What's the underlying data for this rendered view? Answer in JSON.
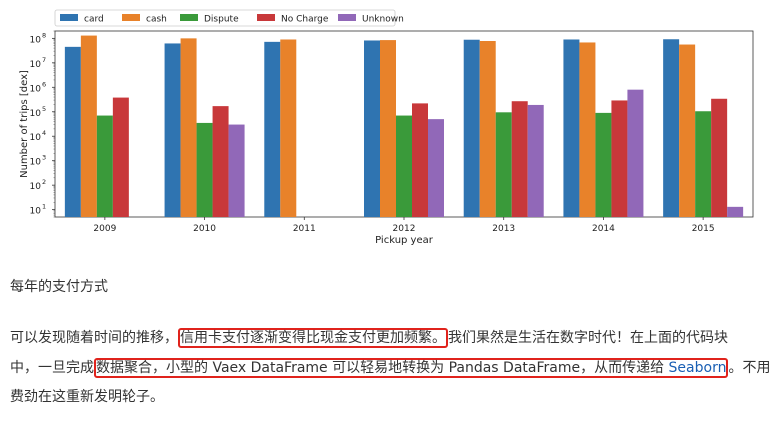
{
  "chart_data": {
    "type": "bar",
    "categories": [
      "2009",
      "2010",
      "2011",
      "2012",
      "2013",
      "2014",
      "2015"
    ],
    "series": [
      {
        "name": "card",
        "color": "#2f74b1",
        "values": [
          45000000,
          62000000,
          72000000,
          82000000,
          88000000,
          90000000,
          92000000
        ]
      },
      {
        "name": "cash",
        "color": "#e8822a",
        "values": [
          130000000,
          100000000,
          90000000,
          85000000,
          78000000,
          68000000,
          56000000
        ]
      },
      {
        "name": "Dispute",
        "color": "#3a9a3a",
        "values": [
          70000,
          35000,
          null,
          70000,
          95000,
          90000,
          105000
        ]
      },
      {
        "name": "No Charge",
        "color": "#c8383a",
        "values": [
          380000,
          170000,
          null,
          220000,
          270000,
          290000,
          340000
        ]
      },
      {
        "name": "Unknown",
        "color": "#9168b8",
        "values": [
          null,
          30000,
          null,
          50000,
          190000,
          800000,
          13
        ]
      }
    ],
    "xlabel": "Pickup year",
    "ylabel": "Number of trips [dex]",
    "yscale": "log",
    "ylim": [
      5,
      200000000
    ],
    "yticks": [
      {
        "value": 10,
        "label": "10"
      },
      {
        "value": 100,
        "label": "10"
      },
      {
        "value": 1000,
        "label": "10"
      },
      {
        "value": 10000,
        "label": "10"
      },
      {
        "value": 100000,
        "label": "10"
      },
      {
        "value": 1000000,
        "label": "10"
      },
      {
        "value": 10000000,
        "label": "10"
      },
      {
        "value": 100000000,
        "label": "10"
      }
    ],
    "ytick_exponents": [
      "1",
      "2",
      "3",
      "4",
      "5",
      "6",
      "7",
      "8"
    ],
    "legend_position": "top-left",
    "grid": false
  },
  "article": {
    "caption": "每年的支付方式",
    "line1_a": "可以发现随着时间的推移，",
    "line1_b": "信用卡支付逐渐变得比现金支付更加频繁。",
    "line1_c": "我们果然是生活在数字时代！在上面的代码块",
    "line2_a": "中，一旦完成",
    "line2_b": "数据聚合，小型的 Vaex DataFrame 可以轻易地转换为 Pandas DataFrame，从而传递给 ",
    "line2_link": "Seaborn",
    "line2_c": "。不用",
    "line3": "费劲在这重新发明轮子。"
  },
  "colors": {
    "highlight_box": "#e0231c",
    "link": "#1a5fb4",
    "text": "#333333"
  }
}
